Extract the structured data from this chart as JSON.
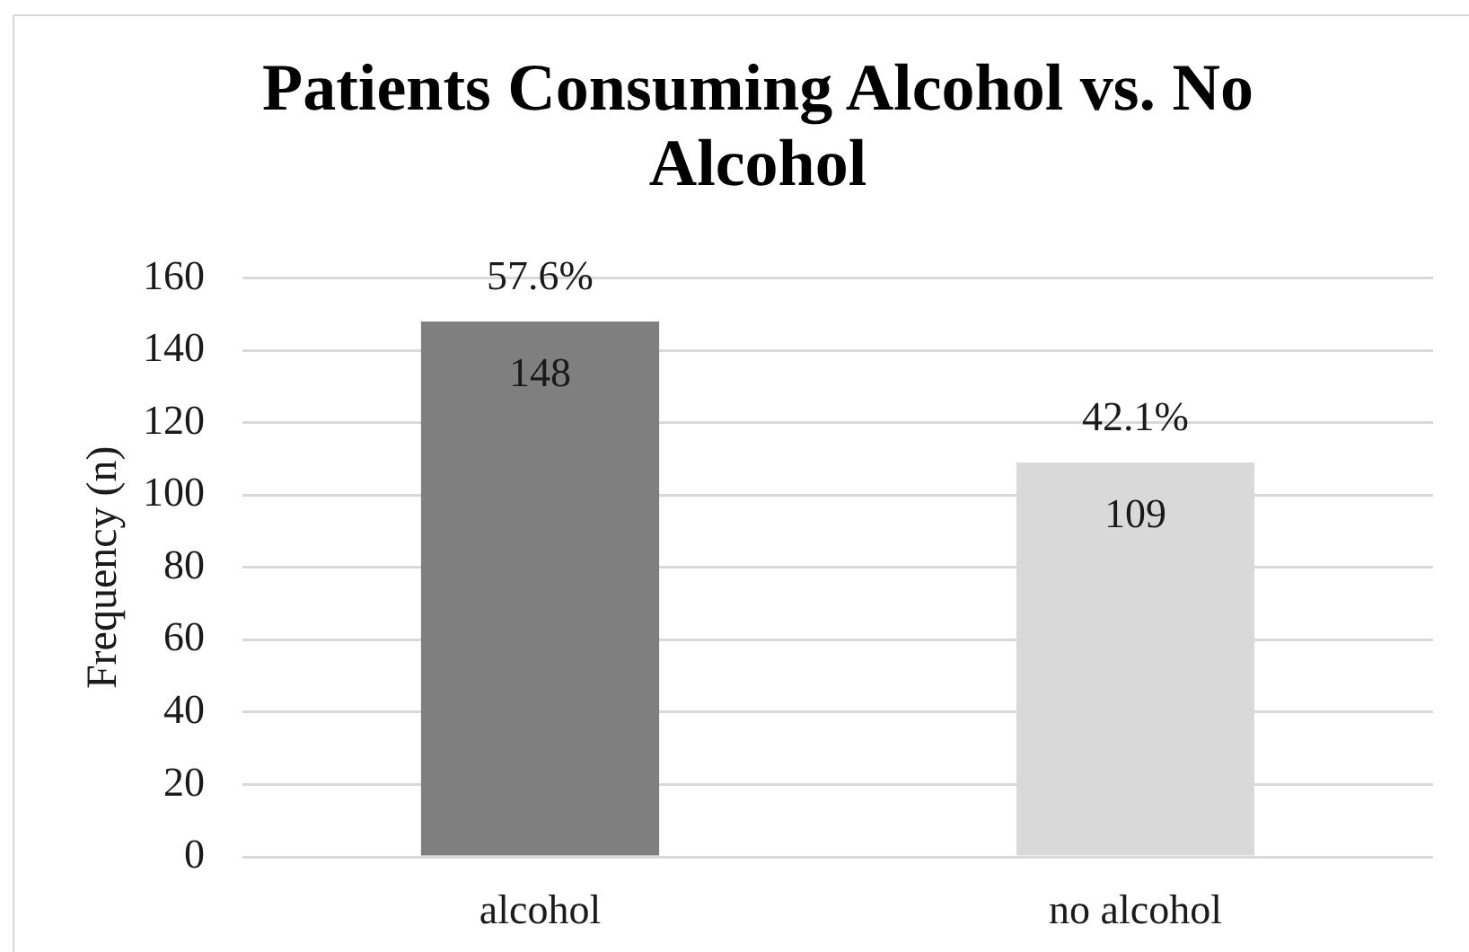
{
  "chart_data": {
    "type": "bar",
    "title": "Patients Consuming Alcohol vs. No Alcohol",
    "ylabel": "Frequency (n)",
    "categories": [
      "alcohol",
      "no alcohol"
    ],
    "values": [
      148,
      109
    ],
    "colors": [
      "#7f7f7f",
      "#d9d9d9"
    ],
    "ylim": [
      0,
      160
    ],
    "yticks": [
      0,
      20,
      40,
      60,
      80,
      100,
      120,
      140,
      160
    ],
    "grid": "y",
    "data_labels": true,
    "annotations": [
      {
        "text": "57.6%",
        "x": "alcohol",
        "y": 148
      },
      {
        "text": "42.1%",
        "x": "no alcohol",
        "y": 109
      }
    ]
  }
}
